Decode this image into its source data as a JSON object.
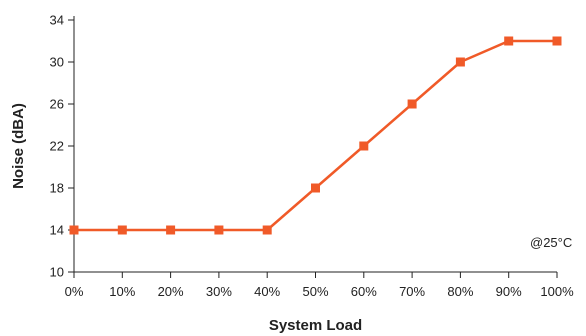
{
  "chart_data": {
    "type": "line",
    "x": [
      "0%",
      "10%",
      "20%",
      "30%",
      "40%",
      "50%",
      "60%",
      "70%",
      "80%",
      "90%",
      "100%"
    ],
    "series": [
      {
        "values": [
          14,
          14,
          14,
          14,
          14,
          18,
          22,
          26,
          30,
          32,
          32
        ],
        "color": "#f05a28"
      }
    ],
    "xlabel": "System Load",
    "ylabel": "Noise (dBA)",
    "ylim": [
      10,
      34
    ],
    "yticks": [
      10,
      14,
      18,
      22,
      26,
      30,
      34
    ],
    "annotation": "@25°C",
    "grid": false,
    "marker": "square"
  }
}
